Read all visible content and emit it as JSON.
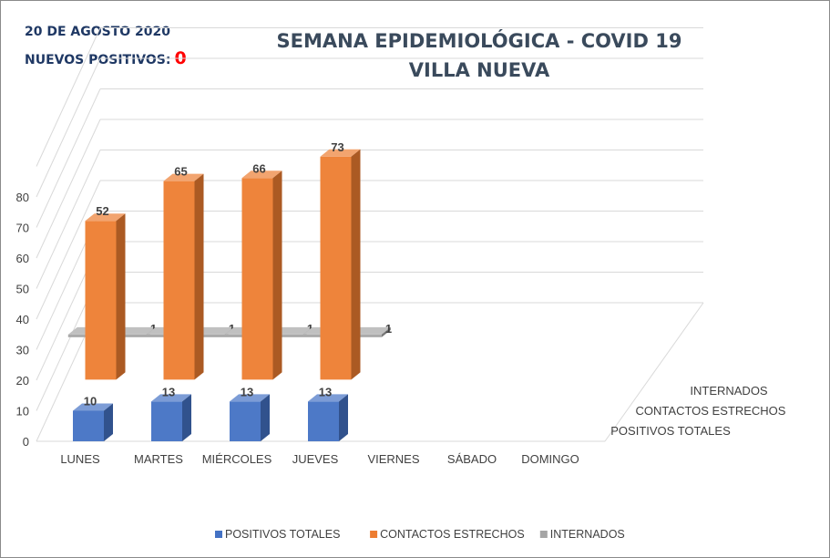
{
  "header": {
    "date": "20 DE AGOSTO 2020",
    "new_positives_label": "NUEVOS POSITIVOS:",
    "new_positives_value": "0"
  },
  "chart_data": {
    "type": "bar",
    "title": "SEMANA EPIDEMIOLÓGICA - COVID 19",
    "subtitle": "VILLA NUEVA",
    "categories": [
      "LUNES",
      "MARTES",
      "MIÉRCOLES",
      "JUEVES",
      "VIERNES",
      "SÁBADO",
      "DOMINGO"
    ],
    "series": [
      {
        "name": "POSITIVOS TOTALES",
        "color": "#4472c4",
        "values": [
          10,
          13,
          13,
          13,
          null,
          null,
          null
        ]
      },
      {
        "name": "CONTACTOS ESTRECHOS",
        "color": "#ed7d31",
        "values": [
          52,
          65,
          66,
          73,
          null,
          null,
          null
        ]
      },
      {
        "name": "INTERNADOS",
        "color": "#a5a5a5",
        "values": [
          1,
          1,
          1,
          1,
          null,
          null,
          null
        ]
      }
    ],
    "ylim": [
      0,
      80
    ],
    "yticks": [
      0,
      10,
      20,
      30,
      40,
      50,
      60,
      70,
      80
    ],
    "grid": true,
    "legend": "bottom",
    "style": "3d-clustered-depth"
  }
}
